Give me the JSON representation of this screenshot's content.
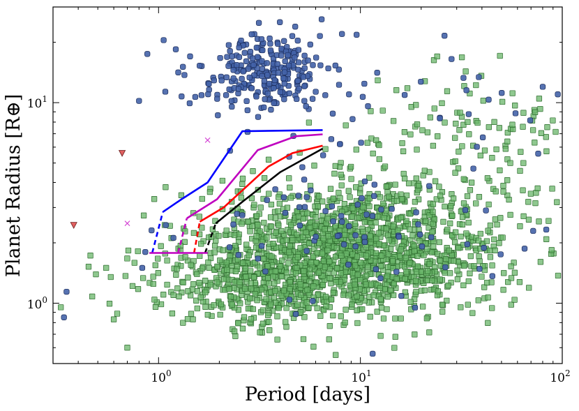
{
  "chart_data": {
    "type": "scatter",
    "xscale": "log",
    "yscale": "log",
    "xlim": [
      0.3,
      100
    ],
    "ylim": [
      0.5,
      30
    ],
    "xlabel": "Period [days]",
    "ylabel": "Planet Radius [R⊕]",
    "x_major_ticks": [
      {
        "value": 1,
        "base": "10",
        "exp": "0"
      },
      {
        "value": 10,
        "base": "10",
        "exp": "1"
      },
      {
        "value": 100,
        "base": "10",
        "exp": "2"
      }
    ],
    "y_major_ticks": [
      {
        "value": 1,
        "base": "10",
        "exp": "0"
      },
      {
        "value": 10,
        "base": "10",
        "exp": "1"
      }
    ],
    "colors": {
      "blue_points": "#4463a9",
      "green_points": "#6ab56a",
      "red_triangles": "#e06060",
      "magenta_x": "#d23cd2",
      "curve_blue": "#0000ff",
      "curve_magenta": "#bf00bf",
      "curve_red": "#ff0000",
      "curve_black": "#000000"
    },
    "series": [
      {
        "name": "blue_circles",
        "marker": "square-round",
        "clusters": [
          {
            "cx": 3.3,
            "cy": 14,
            "sx": 0.16,
            "sy": 0.09,
            "n": 260
          },
          {
            "cx": 12,
            "cy": 2.2,
            "sx": 0.45,
            "sy": 0.18,
            "n": 75
          },
          {
            "cx": 25,
            "cy": 9,
            "sx": 0.45,
            "sy": 0.18,
            "n": 40
          }
        ],
        "extra": [
          [
            0.34,
            0.85
          ],
          [
            0.35,
            1.14
          ],
          [
            0.83,
            1.5
          ],
          [
            0.86,
            1.8
          ],
          [
            0.8,
            10.2
          ],
          [
            0.88,
            17.5
          ],
          [
            1.06,
            20.5
          ],
          [
            6.3,
            21.5
          ],
          [
            8.1,
            22
          ],
          [
            11.5,
            0.56
          ],
          [
            80,
            12
          ],
          [
            95,
            11
          ]
        ]
      },
      {
        "name": "green_squares",
        "marker": "square",
        "clusters": [
          {
            "cx": 9,
            "cy": 1.85,
            "sx": 0.38,
            "sy": 0.16,
            "n": 1500
          },
          {
            "cx": 3.0,
            "cy": 1.2,
            "sx": 0.3,
            "sy": 0.1,
            "n": 300
          },
          {
            "cx": 35,
            "cy": 5.5,
            "sx": 0.35,
            "sy": 0.23,
            "n": 160
          }
        ],
        "extra": [
          [
            0.45,
            1.52
          ],
          [
            0.55,
            1.5
          ],
          [
            0.58,
            1.35
          ],
          [
            0.6,
            0.83
          ],
          [
            0.7,
            0.6
          ],
          [
            24,
            17
          ],
          [
            7,
            0.66
          ]
        ]
      },
      {
        "name": "red_triangles",
        "marker": "triangle-down",
        "points": [
          [
            0.38,
            2.45
          ],
          [
            0.66,
            5.6
          ]
        ]
      },
      {
        "name": "magenta_x",
        "marker": "x",
        "points": [
          [
            0.7,
            2.5
          ],
          [
            1.75,
            6.5
          ]
        ]
      }
    ],
    "curves": [
      {
        "name": "blue",
        "dashed": [
          [
            0.93,
            1.78
          ],
          [
            1.05,
            2.85
          ]
        ],
        "solid": [
          [
            1.05,
            2.85
          ],
          [
            1.3,
            3.3
          ],
          [
            1.75,
            4.0
          ],
          [
            2.6,
            7.2
          ],
          [
            6.5,
            7.3
          ]
        ]
      },
      {
        "name": "magenta",
        "dashed": [
          [
            1.25,
            1.78
          ],
          [
            1.38,
            2.65
          ]
        ],
        "solid": [
          [
            1.38,
            2.65
          ],
          [
            1.95,
            3.3
          ],
          [
            3.1,
            5.8
          ],
          [
            4.8,
            6.8
          ],
          [
            6.5,
            6.95
          ]
        ]
      },
      {
        "name": "red",
        "dashed": [
          [
            1.5,
            1.78
          ],
          [
            1.6,
            2.55
          ]
        ],
        "solid": [
          [
            1.6,
            2.55
          ],
          [
            2.1,
            3.0
          ],
          [
            3.5,
            4.8
          ],
          [
            4.6,
            5.6
          ],
          [
            6.5,
            6.1
          ]
        ]
      },
      {
        "name": "black",
        "dashed": [
          [
            1.7,
            1.78
          ],
          [
            1.92,
            2.5
          ]
        ],
        "solid": [
          [
            1.92,
            2.5
          ],
          [
            2.6,
            3.2
          ],
          [
            4.0,
            4.5
          ],
          [
            6.5,
            5.9
          ]
        ]
      },
      {
        "name": "base",
        "solid": [
          [
            0.9,
            1.78
          ],
          [
            1.75,
            1.78
          ]
        ]
      }
    ]
  }
}
